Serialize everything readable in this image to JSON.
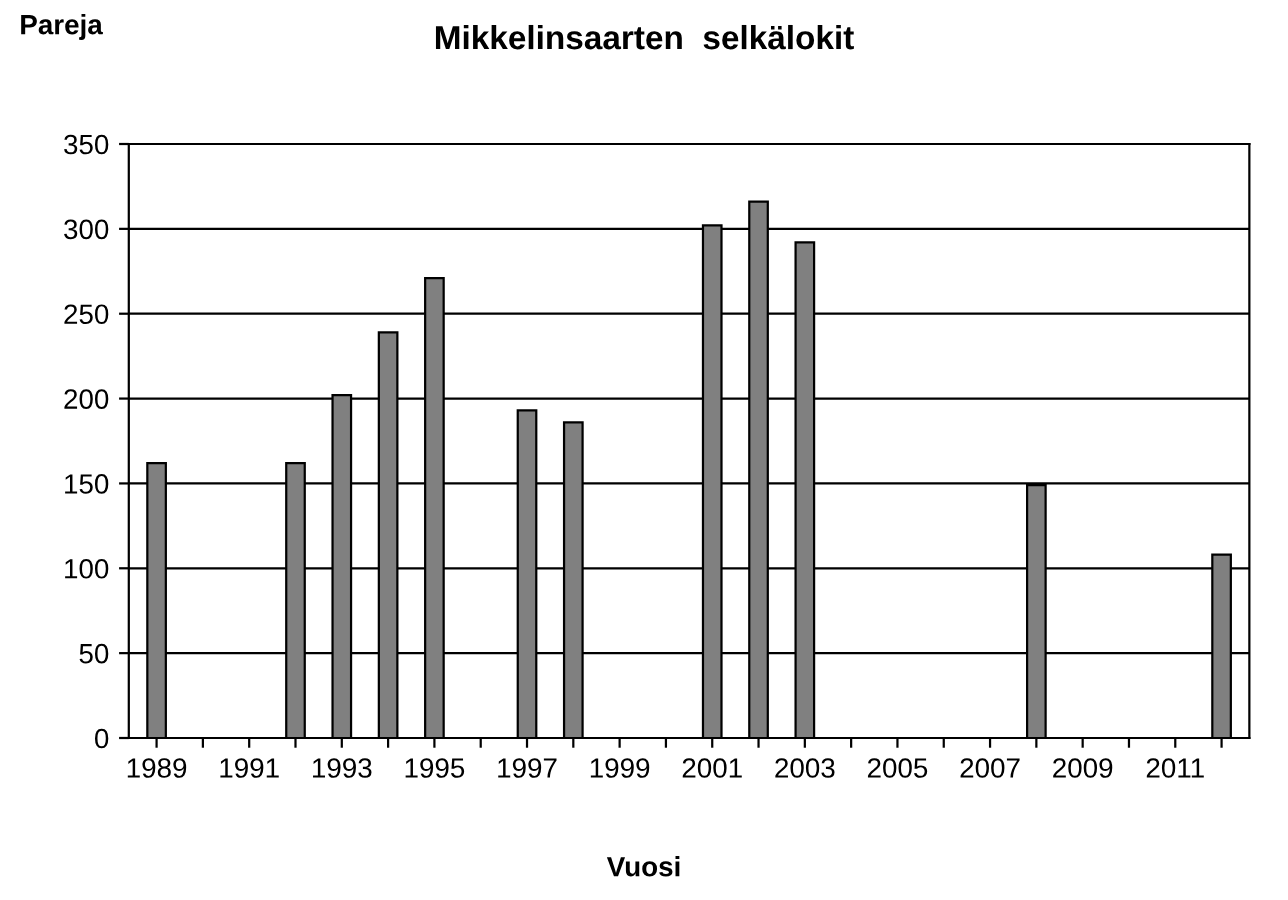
{
  "chart_data": {
    "type": "bar",
    "title": "Mikkelinsaarten  selkälokit",
    "ylabel": "Pareja",
    "xlabel": "Vuosi",
    "categories": [
      "1989",
      null,
      "1991",
      null,
      "1993",
      null,
      "1995",
      null,
      "1997",
      null,
      "1999",
      null,
      "2001",
      null,
      "2003",
      null,
      "2005",
      null,
      "2007",
      null,
      "2009",
      null,
      "2011",
      null
    ],
    "values": [
      162,
      null,
      null,
      162,
      202,
      239,
      271,
      null,
      193,
      186,
      null,
      null,
      302,
      316,
      292,
      null,
      null,
      null,
      null,
      149,
      null,
      null,
      null,
      108
    ],
    "color": "#808080",
    "ylim": [
      0,
      350
    ],
    "yticks": [
      0,
      50,
      100,
      150,
      200,
      250,
      300,
      350
    ],
    "grid": "y"
  }
}
